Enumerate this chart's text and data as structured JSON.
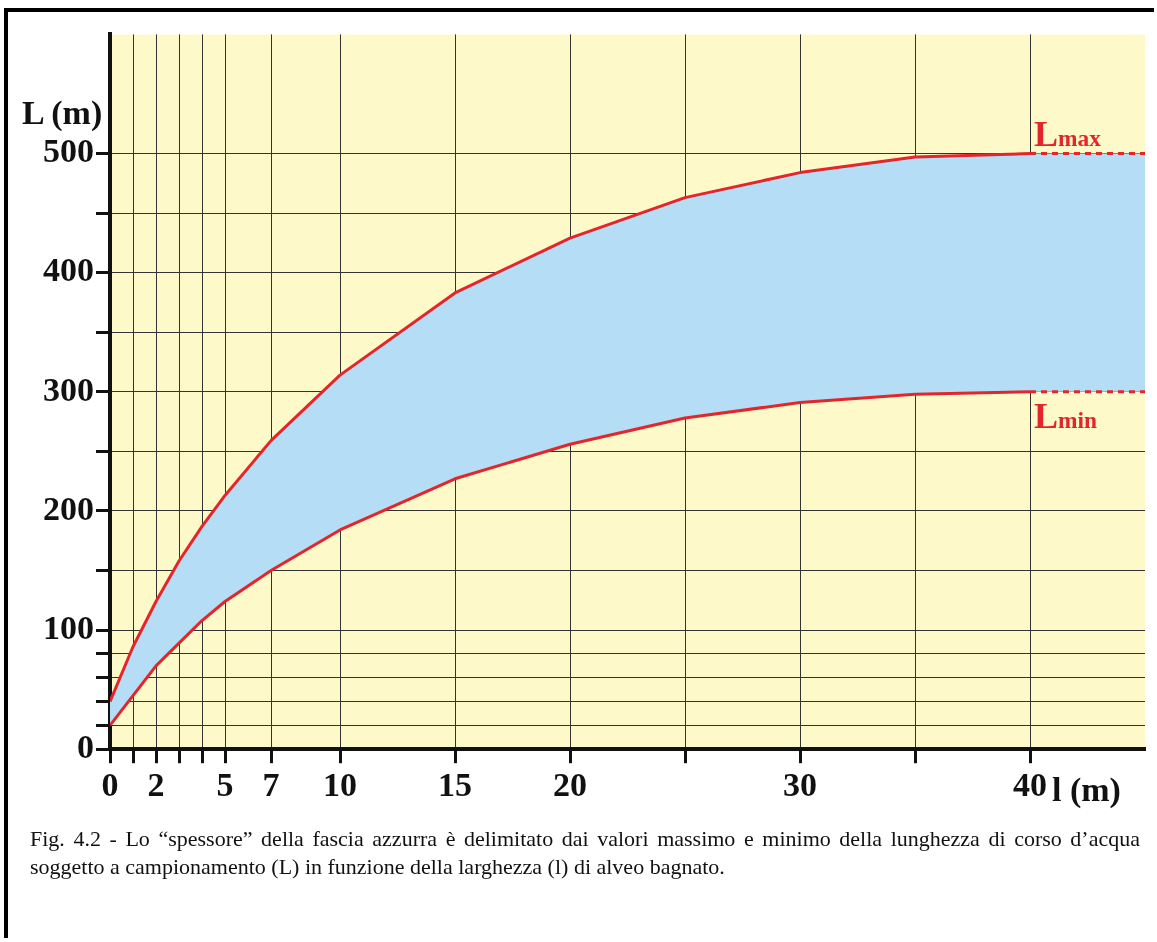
{
  "chart_data": {
    "type": "line",
    "xlabel": "l (m)",
    "ylabel": "L (m)",
    "x": [
      0,
      1,
      2,
      3,
      4,
      5,
      7,
      10,
      15,
      20,
      25,
      30,
      35,
      40,
      45
    ],
    "series": [
      {
        "name": "L$_{max}$",
        "color": "#e3262b",
        "values": [
          40,
          86,
          124,
          158,
          187,
          213,
          259,
          314,
          383,
          429,
          463,
          484,
          497,
          500,
          500
        ],
        "lower": [
          20,
          45,
          70,
          89,
          108,
          124,
          150,
          184,
          227,
          256,
          278,
          291,
          298,
          300,
          300
        ],
        "upper": [
          40,
          86,
          124,
          158,
          187,
          213,
          259,
          314,
          383,
          429,
          463,
          484,
          497,
          500,
          500
        ]
      },
      {
        "name": "L$_{min}$",
        "color": "#e3262b",
        "values": [
          20,
          45,
          70,
          89,
          108,
          124,
          150,
          184,
          227,
          256,
          278,
          291,
          298,
          300,
          300
        ]
      }
    ],
    "xlim": [
      0,
      45
    ],
    "xticks": [
      0,
      {
        "value": 1,
        "label": null
      },
      2,
      {
        "value": 3,
        "label": null
      },
      {
        "value": 4,
        "label": null
      },
      5,
      7,
      10,
      15,
      20,
      {
        "value": 25,
        "label": null
      },
      30,
      {
        "value": 35,
        "label": null
      },
      40
    ],
    "ylim": [
      0,
      600
    ],
    "yticks": [
      0,
      {
        "value": 20,
        "label": null
      },
      {
        "value": 40,
        "label": null
      },
      {
        "value": 60,
        "label": null
      },
      {
        "value": 80,
        "label": null
      },
      100,
      {
        "value": 150,
        "label": null
      },
      200,
      {
        "value": 250,
        "label": null
      },
      300,
      {
        "value": 350,
        "label": null
      },
      400,
      {
        "value": 450,
        "label": null
      },
      500
    ],
    "grid": true,
    "legend": false,
    "marker": "none",
    "line_style": "solid",
    "annotations": [
      "Fig. 4.2 - Lo “spessore” della fascia azzurra è delimitato dai valori massimo e minimo della lunghezza di corso d’acqua soggetto a campionamento (L) in funzione della larghezza (l) di alveo bagnato."
    ]
  }
}
